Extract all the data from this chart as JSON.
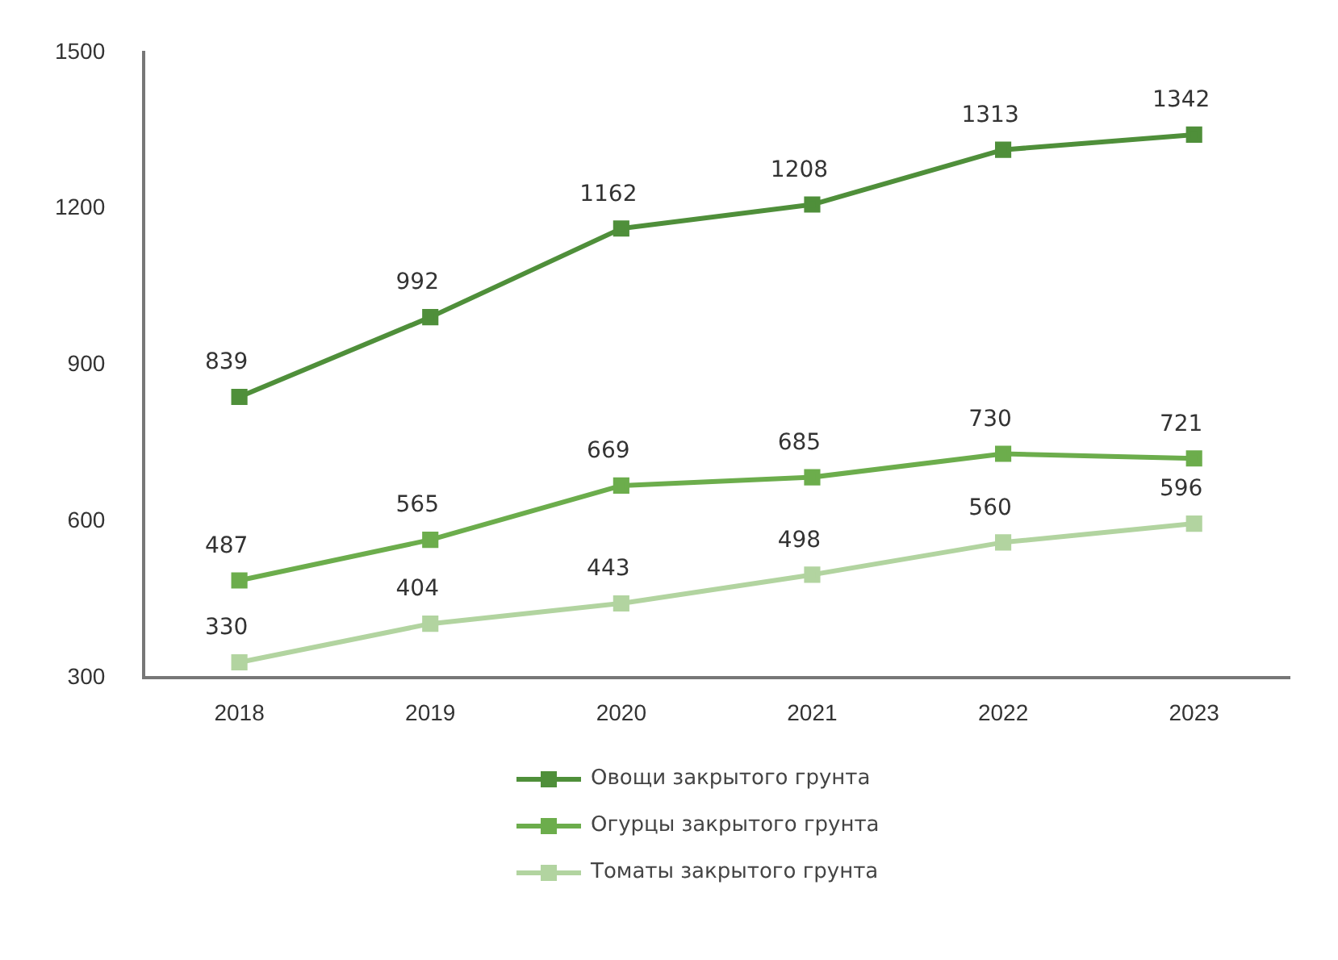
{
  "chart_data": {
    "type": "line",
    "categories": [
      "2018",
      "2019",
      "2020",
      "2021",
      "2022",
      "2023"
    ],
    "series": [
      {
        "name": "Овощи закрытого грунта",
        "color": "#4f8f3a",
        "values": [
          839,
          992,
          1162,
          1208,
          1313,
          1342
        ]
      },
      {
        "name": "Огурцы закрытого грунта",
        "color": "#6cad4c",
        "values": [
          487,
          565,
          669,
          685,
          730,
          721
        ]
      },
      {
        "name": "Томаты закрытого грунта",
        "color": "#b2d4a0",
        "values": [
          330,
          404,
          443,
          498,
          560,
          596
        ]
      }
    ],
    "ylim": [
      300,
      1500
    ],
    "yticks": [
      300,
      600,
      900,
      1200,
      1500
    ],
    "grid": false,
    "legend": "bottom",
    "marker": "square",
    "line_style": "solid",
    "data_labels": true
  }
}
